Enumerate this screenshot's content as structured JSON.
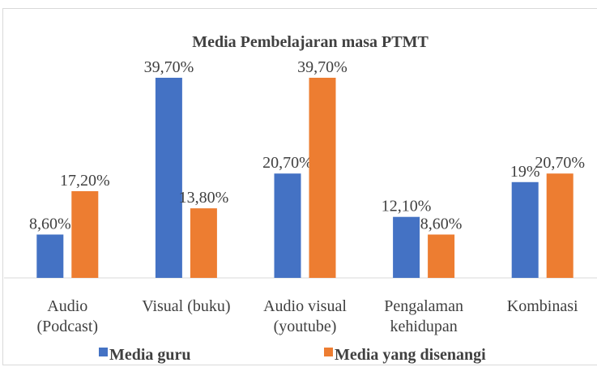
{
  "chart_data": {
    "type": "bar",
    "title": "Media Pembelajaran masa PTMT",
    "categories": [
      [
        "Audio",
        "(Podcast)"
      ],
      [
        "Visual (buku)"
      ],
      [
        "Audio visual",
        "(youtube)"
      ],
      [
        "Pengalaman",
        "kehidupan"
      ],
      [
        "Kombinasi"
      ]
    ],
    "series": [
      {
        "name": "Media guru",
        "color": "#4472c4",
        "values": [
          8.6,
          39.7,
          20.7,
          12.1,
          19
        ],
        "value_labels": [
          "8,60%",
          "39,70%",
          "20,70%",
          "12,10%",
          "19%"
        ]
      },
      {
        "name": "Media yang disenangi",
        "color": "#ed7d31",
        "values": [
          17.2,
          13.8,
          39.7,
          8.6,
          20.7
        ],
        "value_labels": [
          "17,20%",
          "13,80%",
          "39,70%",
          "8,60%",
          "20,70%"
        ]
      }
    ],
    "ylim": [
      0,
      45
    ],
    "legend": "bottom"
  }
}
